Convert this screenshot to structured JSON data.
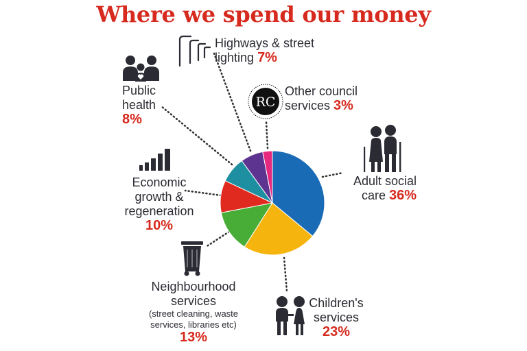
{
  "title": "Where we spend our money",
  "chart_data": {
    "type": "pie",
    "title": "Where we spend our money",
    "categories": [
      "Adult social care",
      "Children's services",
      "Neighbourhood services",
      "Economic growth & regeneration",
      "Public health",
      "Highways & street lighting",
      "Other council services"
    ],
    "values": [
      36,
      23,
      13,
      10,
      8,
      7,
      3
    ],
    "unit": "%",
    "colors": [
      "#1a6bb5",
      "#f6b50e",
      "#47ad36",
      "#e12a1f",
      "#1e8fa0",
      "#5e3491",
      "#e6297e"
    ],
    "legend": "none"
  },
  "labels": {
    "adult": {
      "l1": "Adult social",
      "l2": "care",
      "pct": "36%"
    },
    "children": {
      "l1": "Children's",
      "l2": "services",
      "pct": "23%"
    },
    "neighbourhood": {
      "l1": "Neighbourhood",
      "l2": "services",
      "n1": "(street cleaning, waste",
      "n2": "services, libraries etc)",
      "pct": "13%"
    },
    "economic": {
      "l1": "Economic",
      "l2": "growth &",
      "l3": "regeneration",
      "pct": "10%"
    },
    "health": {
      "l1": "Public",
      "l2": "health",
      "pct": "8%"
    },
    "highways": {
      "l1": "Highways & street",
      "l2": "lighting",
      "pct": "7%"
    },
    "other": {
      "l1": "Other council",
      "l2": "services",
      "pct": "3%"
    }
  },
  "icons": {
    "adult": "elderly-couple-icon",
    "children": "children-icon",
    "neighbourhood": "wheelie-bin-icon",
    "economic": "bar-growth-icon",
    "health": "family-heart-icon",
    "highways": "street-light-icon",
    "other": "council-logo-icon"
  },
  "logo_text": "RC"
}
